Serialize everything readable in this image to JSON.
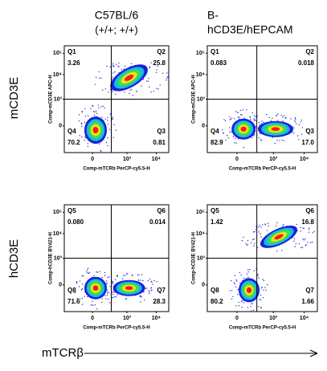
{
  "columns": [
    [
      "C57BL/6",
      "(+/+; +/+)"
    ],
    [
      "B-",
      "hCD3E/hEPCAM"
    ]
  ],
  "rows": [
    "mCD3E",
    "hCD3E"
  ],
  "tick_labels": {
    "y": [
      "10⁵",
      "10⁴",
      "10³",
      "0"
    ],
    "x": [
      "0",
      "10³",
      "10⁴"
    ]
  },
  "panels": [
    {
      "y_label": "Comp-mCD3E APC-H",
      "x_label": "Comp-mTCRb PerCP-cy5.5-H",
      "quadrants": [
        {
          "name": "Q1",
          "value": "3.26"
        },
        {
          "name": "Q2",
          "value": "25.8"
        },
        {
          "name": "Q4",
          "value": "70.2"
        },
        {
          "name": "Q3",
          "value": "0.81"
        }
      ]
    },
    {
      "y_label": "Comp-mCD3E APC-H",
      "x_label": "Comp-mTCRb PerCP-cy5.5-H",
      "quadrants": [
        {
          "name": "Q1",
          "value": "0.083"
        },
        {
          "name": "Q2",
          "value": "0.018"
        },
        {
          "name": "Q4",
          "value": "82.9"
        },
        {
          "name": "Q3",
          "value": "17.0"
        }
      ]
    },
    {
      "y_label": "Comp-hCD3E BV421-H",
      "x_label": "Comp-mTCRb PerCP-cy5.5-H",
      "quadrants": [
        {
          "name": "Q5",
          "value": "0.080"
        },
        {
          "name": "Q6",
          "value": "0.014"
        },
        {
          "name": "Q8",
          "value": "71.6"
        },
        {
          "name": "Q7",
          "value": "28.3"
        }
      ]
    },
    {
      "y_label": "Comp-hCD3E BV421-H",
      "x_label": "Comp-mTCRb PerCP-cy5.5-H",
      "quadrants": [
        {
          "name": "Q5",
          "value": "1.42"
        },
        {
          "name": "Q6",
          "value": "16.8"
        },
        {
          "name": "Q8",
          "value": "80.2"
        },
        {
          "name": "Q7",
          "value": "1.66"
        }
      ]
    }
  ],
  "footer": "mTCRβ"
}
